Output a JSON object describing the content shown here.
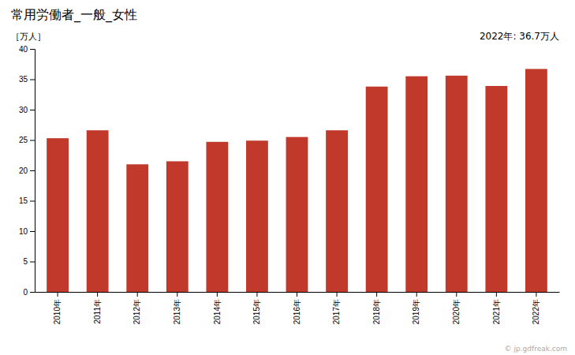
{
  "chart_data": {
    "type": "bar",
    "title": "常用労働者_一般_女性",
    "ylabel": "［万人］",
    "annotation": "2022年: 36.7万人",
    "watermark": "© jp.gdfreak.com",
    "categories": [
      "2010年",
      "2011年",
      "2012年",
      "2013年",
      "2014年",
      "2015年",
      "2016年",
      "2017年",
      "2018年",
      "2019年",
      "2020年",
      "2021年",
      "2022年"
    ],
    "values": [
      25.3,
      26.6,
      21.0,
      21.5,
      24.7,
      24.9,
      25.5,
      26.6,
      33.8,
      35.5,
      35.6,
      33.9,
      36.7
    ],
    "color": "#c0392b",
    "ylim": [
      0,
      40
    ],
    "yticks": [
      0,
      5,
      10,
      15,
      20,
      25,
      30,
      35,
      40
    ],
    "grid": false
  }
}
